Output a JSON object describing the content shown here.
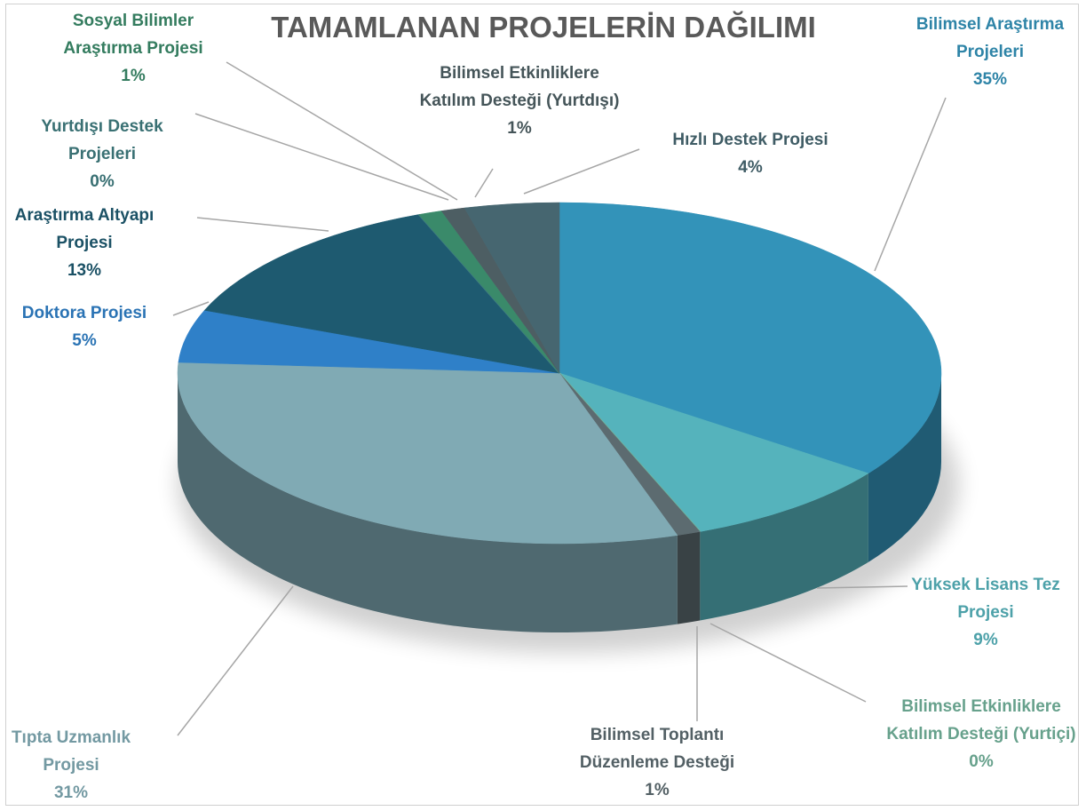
{
  "chart_data": {
    "type": "pie3d",
    "title": "TAMAMLANAN PROJELERİN DAĞILIMI",
    "categories": [
      "Bilimsel Araştırma Projeleri",
      "Yüksek Lisans Tez Projesi",
      "Bilimsel Etkinliklere Katılım Desteği (Yurtiçi)",
      "Bilimsel Toplantı Düzenleme Desteği",
      "Tıpta Uzmanlık Projesi",
      "Doktora Projesi",
      "Araştırma Altyapı Projesi",
      "Yurtdışı Destek Projeleri",
      "Sosyal Bilimler Araştırma Projesi",
      "Bilimsel Etkinliklere Katılım Desteği (Yurtdışı)",
      "Hızlı Destek Projesi"
    ],
    "values": [
      35,
      9,
      0,
      1,
      31,
      5,
      13,
      0,
      1,
      1,
      4
    ],
    "value_labels": [
      "35%",
      "9%",
      "0%",
      "1%",
      "31%",
      "5%",
      "13%",
      "0%",
      "1%",
      "1%",
      "4%"
    ],
    "colors": [
      "#3393b9",
      "#55b3bc",
      "#72b39c",
      "#5c6b70",
      "#80aab4",
      "#2f80c8",
      "#1e5a70",
      "#3f7c80",
      "#3a8a6a",
      "#4d5e63",
      "#466670"
    ]
  }
}
